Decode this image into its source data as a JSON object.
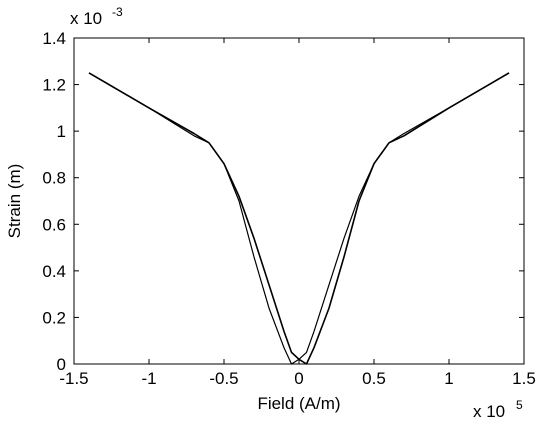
{
  "chart_data": {
    "type": "line",
    "title": "",
    "xlabel": "Field (A/m)",
    "ylabel": "Strain (m)",
    "x_multiplier_label": "x 10",
    "x_multiplier_exponent": "5",
    "y_multiplier_label": "x 10",
    "y_multiplier_exponent": "-3",
    "xlim": [
      -1.5,
      1.5
    ],
    "ylim": [
      0,
      1.4
    ],
    "x_ticks": [
      "-1.5",
      "-1",
      "-0.5",
      "0",
      "0.5",
      "1",
      "1.5"
    ],
    "y_ticks": [
      "0",
      "0.2",
      "0.4",
      "0.6",
      "0.8",
      "1",
      "1.2",
      "1.4"
    ],
    "grid": false,
    "legend": "none",
    "series": [
      {
        "color": "#000000",
        "x": [
          -1.4,
          -1.0,
          -0.7,
          -0.6,
          -0.5,
          -0.4,
          -0.3,
          -0.2,
          -0.1,
          -0.05,
          0.0,
          0.05,
          0.1,
          0.2,
          0.3,
          0.4,
          0.5,
          0.6,
          0.7,
          1.0,
          1.4
        ],
        "y": [
          1.25,
          1.1,
          0.99,
          0.95,
          0.86,
          0.72,
          0.54,
          0.34,
          0.14,
          0.05,
          0.02,
          0.0,
          0.07,
          0.24,
          0.46,
          0.7,
          0.86,
          0.95,
          0.98,
          1.1,
          1.25
        ]
      },
      {
        "color": "#000000",
        "x": [
          -1.4,
          -1.0,
          -0.7,
          -0.6,
          -0.5,
          -0.4,
          -0.3,
          -0.2,
          -0.1,
          -0.05,
          0.0,
          0.05,
          0.1,
          0.2,
          0.3,
          0.4,
          0.5,
          0.6,
          0.7,
          1.0,
          1.4
        ],
        "y": [
          1.25,
          1.1,
          0.98,
          0.95,
          0.86,
          0.7,
          0.46,
          0.24,
          0.07,
          0.0,
          0.02,
          0.05,
          0.14,
          0.34,
          0.54,
          0.72,
          0.86,
          0.95,
          0.99,
          1.1,
          1.25
        ]
      }
    ]
  }
}
